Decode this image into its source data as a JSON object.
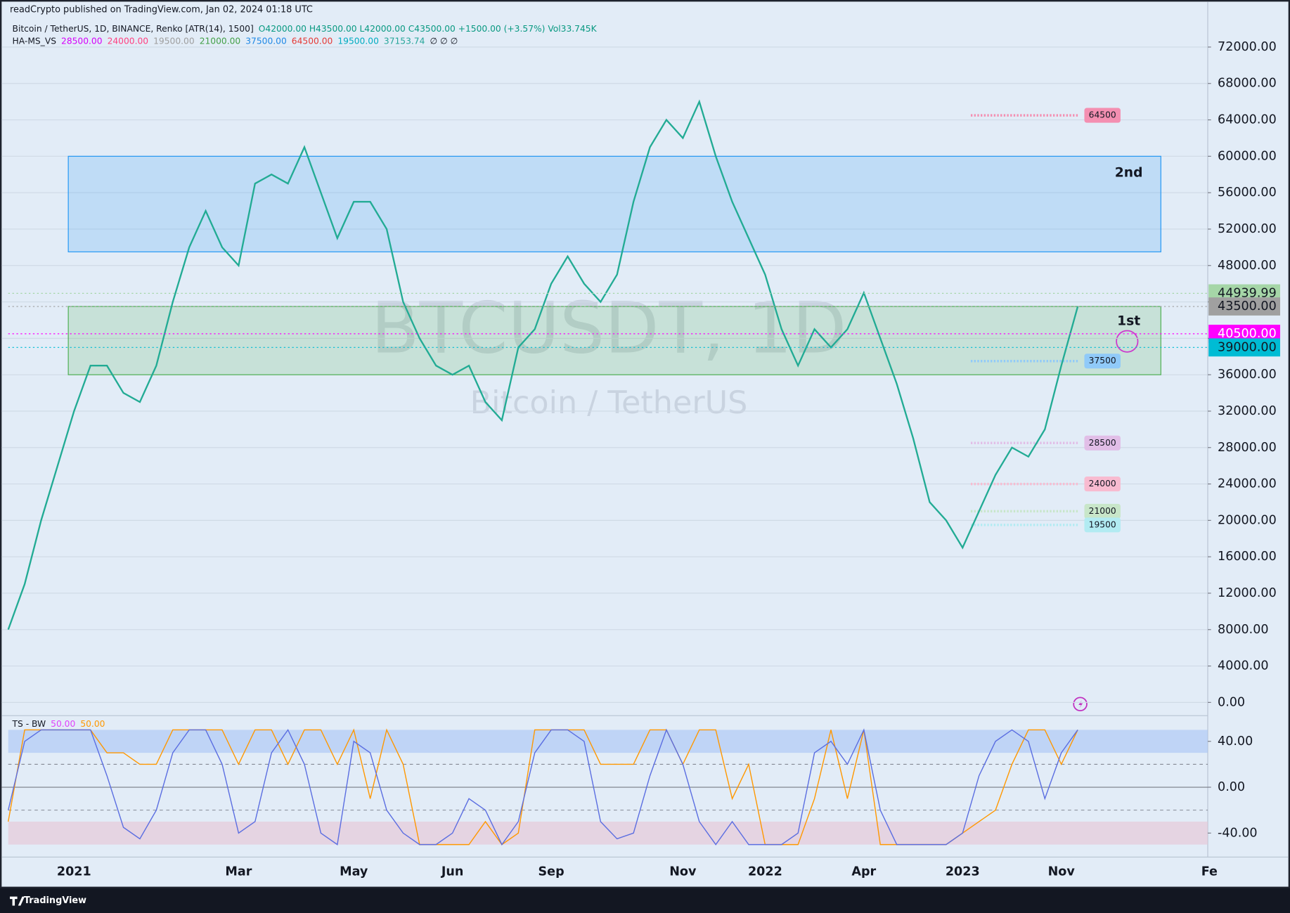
{
  "header": {
    "published": "readCrypto published on TradingView.com, Jan 02, 2024 01:18 UTC",
    "symbol": "Bitcoin / TetherUS, 1D, BINANCE, Renko [ATR(14), 1500]",
    "ohlc": "O42000.00 H43500.00 L42000.00 C43500.00 +1500.00 (+3.57%) Vol33.745K",
    "indicator_name": "HA-MS_VS",
    "indicator_values": [
      {
        "text": "28500.00",
        "color": "#d500f9"
      },
      {
        "text": "24000.00",
        "color": "#ff4081"
      },
      {
        "text": "19500.00",
        "color": "#9e9e9e"
      },
      {
        "text": "21000.00",
        "color": "#43a047"
      },
      {
        "text": "37500.00",
        "color": "#1e88e5"
      },
      {
        "text": "64500.00",
        "color": "#e53935"
      },
      {
        "text": "19500.00",
        "color": "#00acc1"
      },
      {
        "text": "37153.74",
        "color": "#26a69a"
      },
      {
        "text": "∅ ∅ ∅",
        "color": "#131722"
      }
    ],
    "watermark": "BTCUSDT, 1D",
    "watermark_sub": "Bitcoin / TetherUS"
  },
  "footer": {
    "brand": "TradingView"
  },
  "chart_data": [
    {
      "type": "line",
      "categories": [
        null,
        null,
        null,
        null,
        "2021",
        null,
        null,
        null,
        null,
        null,
        null,
        null,
        null,
        null,
        "Mar",
        null,
        null,
        null,
        null,
        null,
        null,
        "May",
        null,
        null,
        null,
        null,
        null,
        "Jun",
        null,
        null,
        null,
        null,
        null,
        "Sep",
        null,
        null,
        null,
        null,
        null,
        null,
        null,
        "Nov",
        null,
        null,
        null,
        null,
        "2022",
        null,
        null,
        null,
        null,
        null,
        "Apr",
        null,
        null,
        null,
        null,
        null,
        "2023",
        null,
        null,
        null,
        null,
        null,
        "Nov",
        null,
        null,
        null,
        null,
        null,
        null,
        null,
        null,
        "Fe"
      ],
      "series": [
        {
          "color": "#22ab94",
          "values": [
            8000,
            13000,
            20000,
            26000,
            32000,
            37000,
            37000,
            34000,
            33000,
            37000,
            44000,
            50000,
            54000,
            50000,
            48000,
            57000,
            58000,
            57000,
            61000,
            56000,
            51000,
            55000,
            55000,
            52000,
            44000,
            40000,
            37000,
            36000,
            37000,
            33000,
            31000,
            39000,
            41000,
            46000,
            49000,
            46000,
            44000,
            47000,
            55000,
            61000,
            64000,
            62000,
            66000,
            60000,
            55000,
            51000,
            47000,
            41000,
            37000,
            41000,
            39000,
            41000,
            45000,
            40000,
            35000,
            29000,
            22000,
            20000,
            17000,
            21000,
            25000,
            28000,
            27000,
            30000,
            37000,
            43500,
            null,
            null,
            null,
            null,
            null,
            null,
            null,
            null
          ]
        }
      ],
      "ylim": [
        -1450,
        75000
      ],
      "yticks": [
        {
          "value": 0,
          "label": "0.00"
        },
        {
          "value": 4000,
          "label": "4000.00"
        },
        {
          "value": 8000,
          "label": "8000.00"
        },
        {
          "value": 12000,
          "label": "12000.00"
        },
        {
          "value": 16000,
          "label": "16000.00"
        },
        {
          "value": 20000,
          "label": "20000.00"
        },
        {
          "value": 24000,
          "label": "24000.00"
        },
        {
          "value": 28000,
          "label": "28000.00"
        },
        {
          "value": 32000,
          "label": "32000.00"
        },
        {
          "value": 36000,
          "label": "36000.00"
        },
        {
          "value": 40000,
          "label": "40000.00"
        },
        {
          "value": 44000,
          "label": "44000.00"
        },
        {
          "value": 48000,
          "label": "48000.00"
        },
        {
          "value": 52000,
          "label": "52000.00"
        },
        {
          "value": 56000,
          "label": "56000.00"
        },
        {
          "value": 60000,
          "label": "60000.00"
        },
        {
          "value": 64000,
          "label": "64000.00"
        },
        {
          "value": 68000,
          "label": "68000.00"
        },
        {
          "value": 72000,
          "label": "72000.00"
        }
      ],
      "grid": true,
      "zones": [
        {
          "label": "2nd",
          "range": [
            49500,
            60000
          ],
          "color": "#2196f3"
        },
        {
          "label": "1st",
          "range": [
            36000,
            43500
          ],
          "color": "#4caf50"
        }
      ],
      "levels": [
        {
          "value": 64500,
          "color": "#f48fb1"
        },
        {
          "value": 37500,
          "color": "#90caf9"
        },
        {
          "value": 28500,
          "color": "#e1bee7"
        },
        {
          "value": 24000,
          "color": "#f8bbd0"
        },
        {
          "value": 21000,
          "color": "#c8e6c9"
        },
        {
          "value": 19500,
          "color": "#b2ebf2"
        }
      ],
      "price_labels": [
        {
          "value": 44939.99,
          "label": "44939.99",
          "color": "#a5d6a7",
          "text_color": "#131722"
        },
        {
          "value": 43500,
          "label": "43500.00",
          "color": "#a0a0a0",
          "text_color": "#131722"
        },
        {
          "value": 40500,
          "label": "40500.00",
          "color": "#ff00ff",
          "text_color": "#ffffff"
        },
        {
          "value": 39000,
          "label": "39000.00",
          "color": "#00bcd4",
          "text_color": "#131722"
        }
      ]
    },
    {
      "type": "line",
      "title": "TS - BW",
      "params": [
        {
          "text": "50.00",
          "color": "#e040fb"
        },
        {
          "text": "50.00",
          "color": "#ff9800"
        }
      ],
      "series": [
        {
          "color": "#ff9800",
          "values": [
            -30,
            50,
            50,
            50,
            50,
            50,
            30,
            30,
            20,
            20,
            50,
            50,
            50,
            50,
            20,
            50,
            50,
            20,
            50,
            50,
            20,
            50,
            -10,
            50,
            20,
            -50,
            -50,
            -50,
            -50,
            -30,
            -50,
            -40,
            50,
            50,
            50,
            50,
            20,
            20,
            20,
            50,
            50,
            20,
            50,
            50,
            -10,
            20,
            -50,
            -50,
            -50,
            -10,
            50,
            -10,
            50,
            -50,
            -50,
            -50,
            -50,
            -50,
            -40,
            -30,
            -20,
            20,
            50,
            50,
            20,
            50,
            null,
            null,
            null,
            null,
            null,
            null,
            null,
            null
          ]
        },
        {
          "color": "#5b6ee1",
          "values": [
            -20,
            40,
            50,
            50,
            50,
            50,
            10,
            -35,
            -45,
            -20,
            30,
            50,
            50,
            20,
            -40,
            -30,
            30,
            50,
            20,
            -40,
            -50,
            40,
            30,
            -20,
            -40,
            -50,
            -50,
            -40,
            -10,
            -20,
            -50,
            -30,
            30,
            50,
            50,
            40,
            -30,
            -45,
            -40,
            10,
            50,
            20,
            -30,
            -50,
            -30,
            -50,
            -50,
            -50,
            -40,
            30,
            40,
            20,
            50,
            -20,
            -50,
            -50,
            -50,
            -50,
            -40,
            10,
            40,
            50,
            40,
            -10,
            30,
            50,
            null,
            null,
            null,
            null,
            null,
            null,
            null,
            null
          ]
        }
      ],
      "ylim": [
        -59.5,
        61
      ],
      "yticks": [
        {
          "value": 40,
          "label": "40.00"
        },
        {
          "value": 0,
          "label": "0.00"
        },
        {
          "value": -40,
          "label": "-40.00"
        }
      ],
      "bands": [
        {
          "range": [
            30,
            50
          ],
          "color": "#a8c4f5"
        },
        {
          "range": [
            -50,
            -30
          ],
          "color": "#e8c4d4"
        }
      ],
      "dashed_levels": [
        20,
        -20
      ]
    }
  ]
}
